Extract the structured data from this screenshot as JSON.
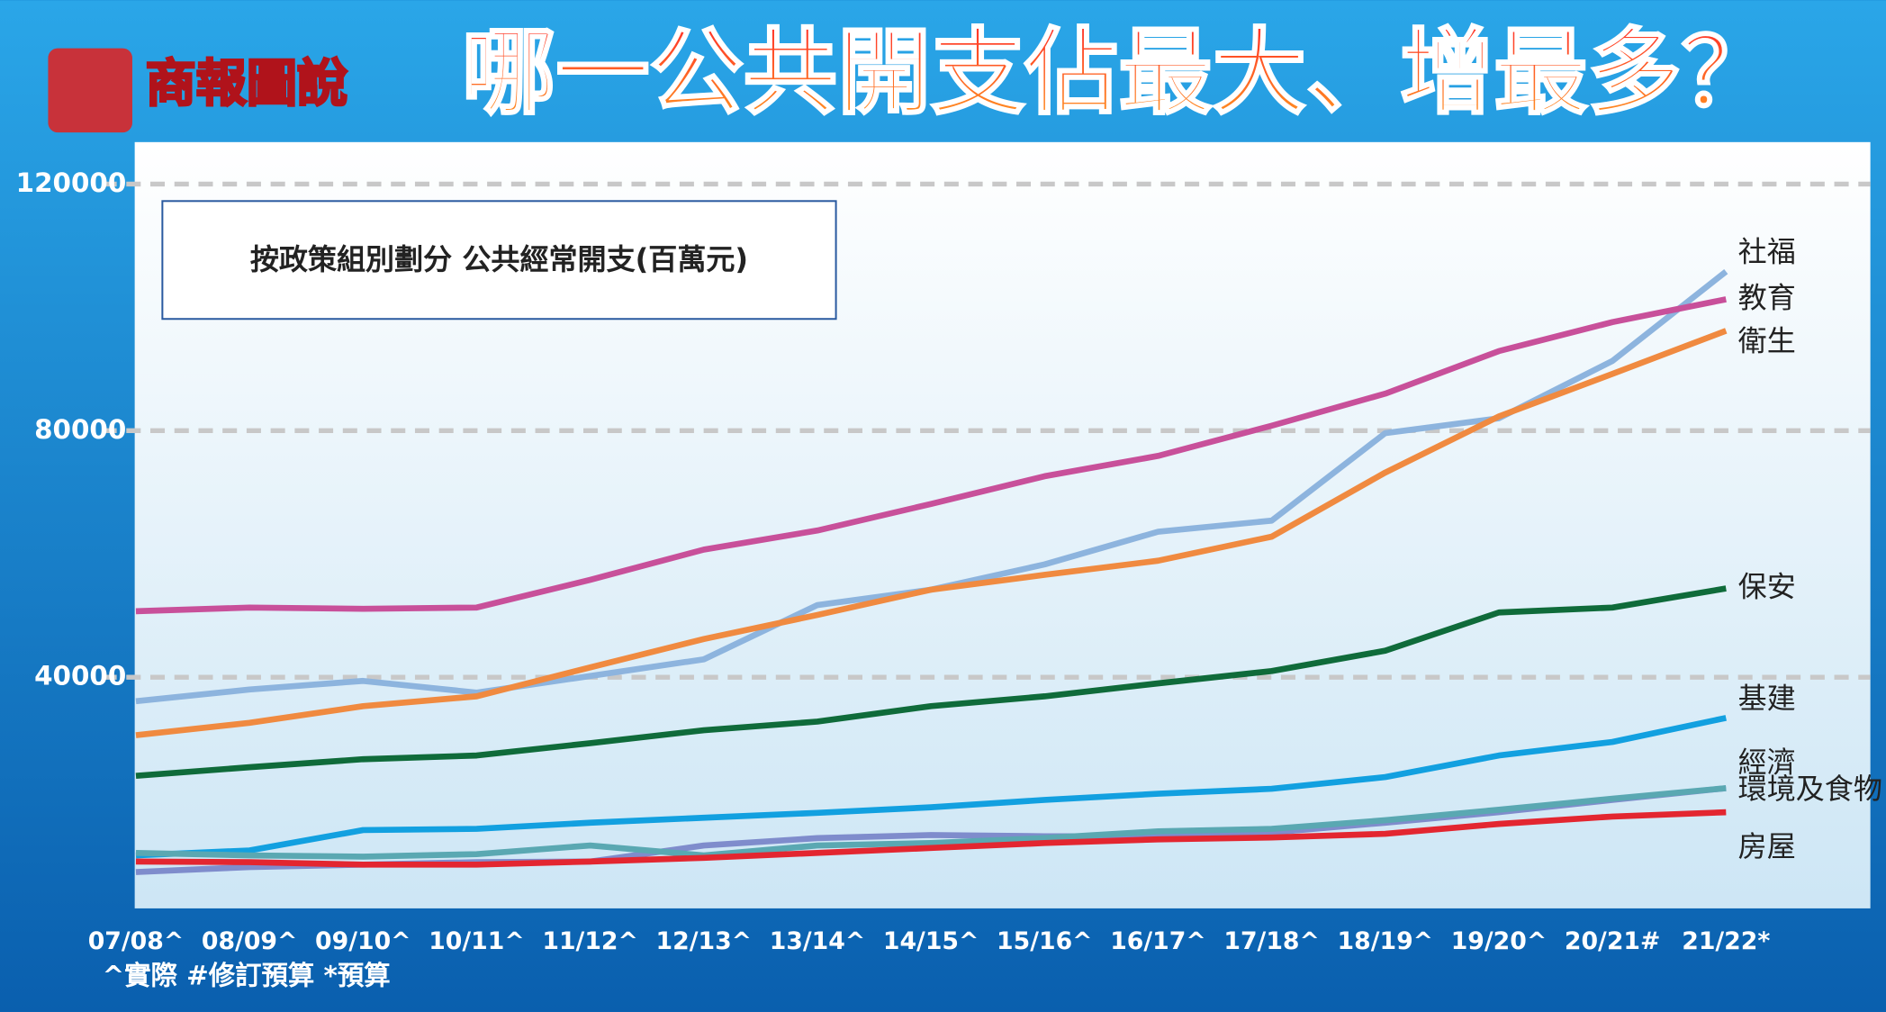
{
  "header": {
    "logo": "商報圖說",
    "title": "哪一公共開支佔最大、增最多？"
  },
  "chart_data": {
    "type": "line",
    "subtitle": "按政策組別劃分  公共經常開支(百萬元)",
    "categories": [
      "07/08^",
      "08/09^",
      "09/10^",
      "10/11^",
      "11/12^",
      "12/13^",
      "13/14^",
      "14/15^",
      "15/16^",
      "16/17^",
      "17/18^",
      "18/19^",
      "19/20^",
      "20/21#",
      "21/22*"
    ],
    "footnote": "^實際 #修訂預算 *預算",
    "ylim": [
      2500,
      126800
    ],
    "yticks": [
      40000,
      80000,
      120000
    ],
    "grid": true,
    "series": [
      {
        "name": "社福",
        "color": "#8db4de",
        "values": [
          36100,
          38000,
          39400,
          37500,
          40200,
          42900,
          51700,
          54200,
          58300,
          63600,
          65400,
          79600,
          82000,
          91300,
          105800
        ]
      },
      {
        "name": "教育",
        "color": "#c8509a",
        "values": [
          50700,
          51300,
          51100,
          51300,
          55800,
          60700,
          63800,
          68100,
          72600,
          75900,
          80800,
          86000,
          92900,
          97600,
          101300
        ]
      },
      {
        "name": "衛生",
        "color": "#f08a40",
        "values": [
          30600,
          32600,
          35300,
          36900,
          41600,
          46200,
          50100,
          54200,
          56600,
          58900,
          62800,
          73200,
          82300,
          89200,
          96200
        ]
      },
      {
        "name": "保安",
        "color": "#0f6b3a",
        "values": [
          24000,
          25400,
          26700,
          27300,
          29300,
          31400,
          32800,
          35300,
          36900,
          39000,
          41000,
          44300,
          50500,
          51300,
          54400
        ]
      },
      {
        "name": "基建",
        "color": "#12a0e0",
        "values": [
          11100,
          11900,
          15200,
          15400,
          16400,
          17200,
          18000,
          18900,
          20100,
          21100,
          21900,
          23800,
          27300,
          29500,
          33400
        ]
      },
      {
        "name": "經濟",
        "color": "#7f8ccc",
        "values": [
          8400,
          9200,
          9600,
          10000,
          10100,
          12700,
          13900,
          14400,
          14200,
          14200,
          14800,
          16400,
          18100,
          20100,
          22000
        ]
      },
      {
        "name": "環境及食物",
        "color": "#5aa8b2",
        "values": [
          11500,
          11100,
          10900,
          11300,
          12700,
          11100,
          12700,
          13100,
          13900,
          15000,
          15400,
          16800,
          18500,
          20300,
          22000
        ]
      },
      {
        "name": "房屋",
        "color": "#e32630",
        "values": [
          10100,
          10000,
          9600,
          9600,
          10100,
          10700,
          11500,
          12300,
          13100,
          13700,
          14000,
          14600,
          16200,
          17400,
          18100
        ]
      }
    ]
  }
}
